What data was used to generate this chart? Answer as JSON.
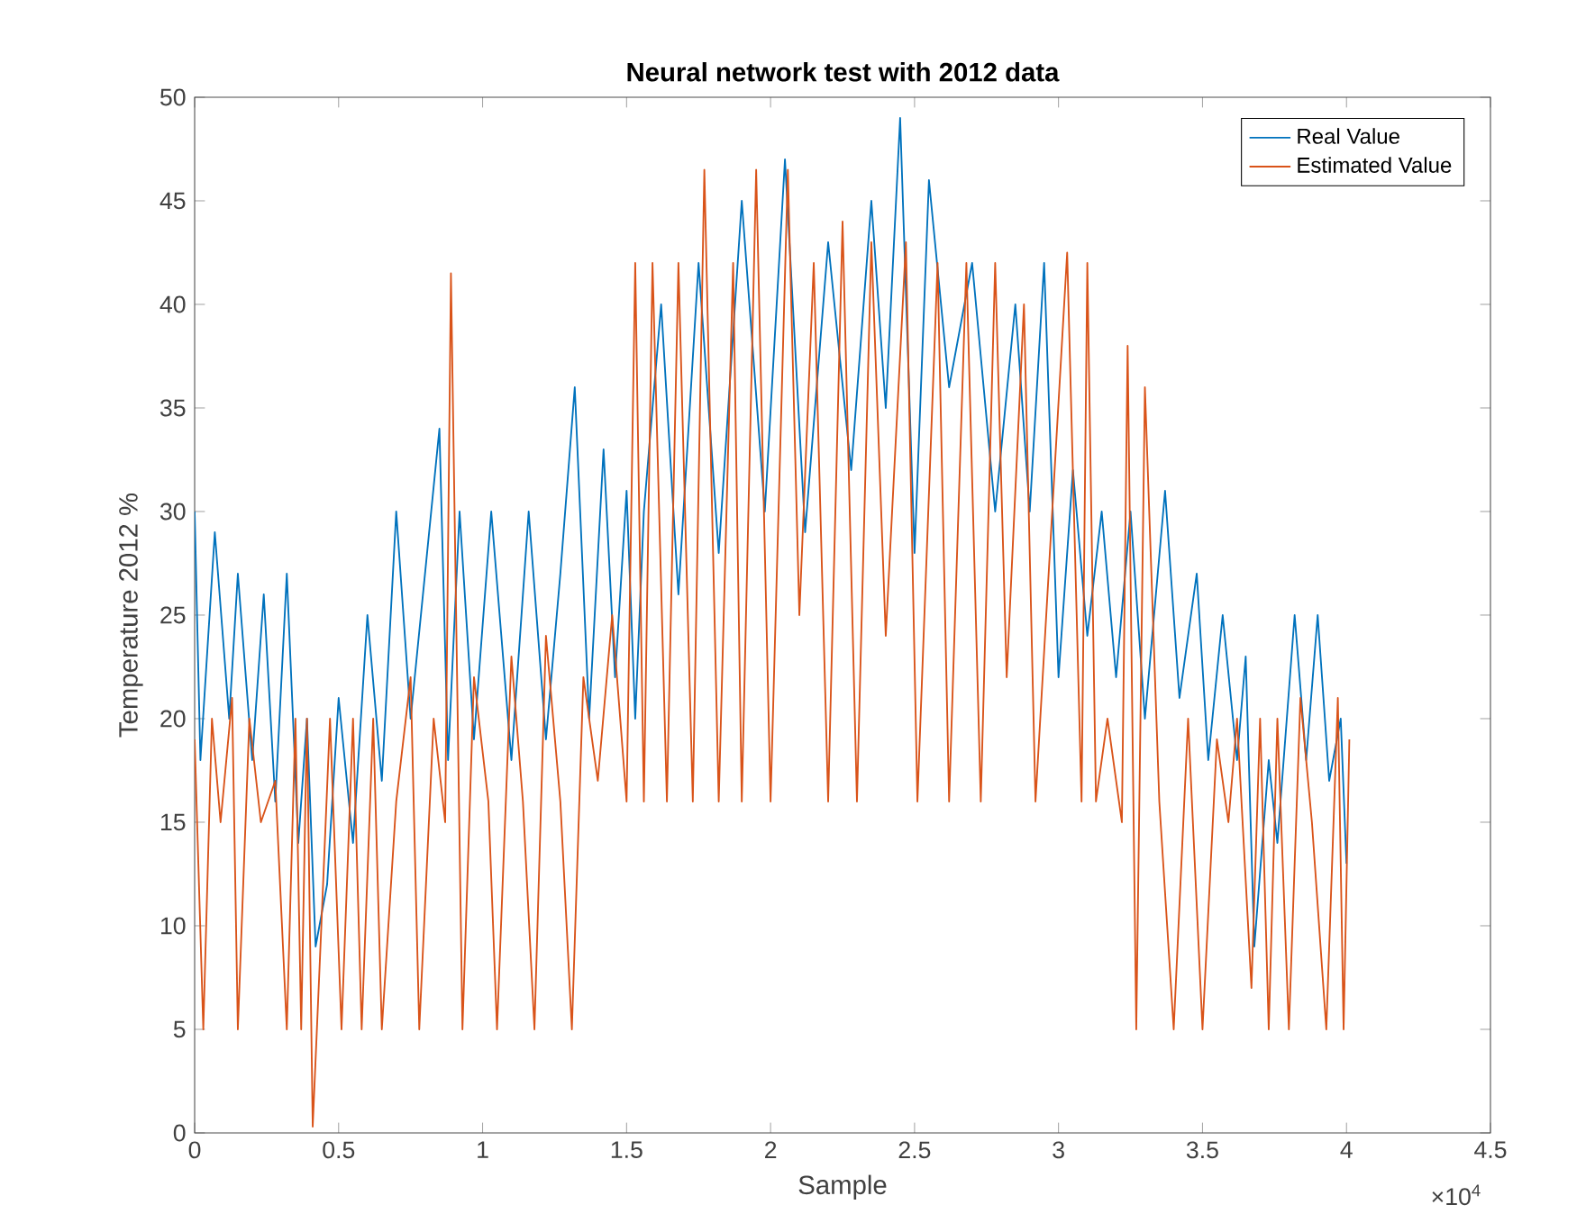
{
  "chart_data": {
    "type": "line",
    "title": "Neural network test with 2012 data",
    "xlabel": "Sample",
    "ylabel": "Temperature 2012 %",
    "xlim": [
      0,
      4.5
    ],
    "ylim": [
      0,
      50
    ],
    "xticks": [
      0,
      0.5,
      1,
      1.5,
      2,
      2.5,
      3,
      3.5,
      4,
      4.5
    ],
    "yticks": [
      0,
      5,
      10,
      15,
      20,
      25,
      30,
      35,
      40,
      45,
      50
    ],
    "annotations": [
      "×10$^{4}$"
    ],
    "legend": "top right",
    "grid": false,
    "marker": "none",
    "line_style": "solid",
    "series": [
      {
        "name": "Real Value",
        "color": "#0072bd",
        "x": [
          0,
          0.02,
          0.07,
          0.12,
          0.15,
          0.2,
          0.24,
          0.28,
          0.32,
          0.36,
          0.39,
          0.42,
          0.46,
          0.5,
          0.55,
          0.6,
          0.65,
          0.7,
          0.75,
          0.85,
          0.88,
          0.92,
          0.97,
          1.03,
          1.1,
          1.16,
          1.22,
          1.27,
          1.32,
          1.37,
          1.42,
          1.46,
          1.5,
          1.53,
          1.56,
          1.62,
          1.68,
          1.75,
          1.82,
          1.9,
          1.98,
          2.05,
          2.12,
          2.2,
          2.28,
          2.35,
          2.4,
          2.45,
          2.5,
          2.55,
          2.62,
          2.7,
          2.78,
          2.85,
          2.9,
          2.95,
          3,
          3.05,
          3.1,
          3.15,
          3.2,
          3.25,
          3.3,
          3.37,
          3.42,
          3.48,
          3.52,
          3.57,
          3.62,
          3.65,
          3.68,
          3.73,
          3.76,
          3.82,
          3.86,
          3.9,
          3.94,
          3.98,
          4
        ],
        "values": [
          30,
          18,
          29,
          20,
          27,
          18,
          26,
          16,
          27,
          14,
          20,
          9,
          12,
          21,
          14,
          25,
          17,
          30,
          20,
          34,
          18,
          30,
          19,
          30,
          18,
          30,
          19,
          27,
          36,
          20,
          33,
          22,
          31,
          20,
          30,
          40,
          26,
          42,
          28,
          45,
          30,
          47,
          29,
          43,
          32,
          45,
          35,
          49,
          28,
          46,
          36,
          42,
          30,
          40,
          30,
          42,
          22,
          32,
          24,
          30,
          22,
          30,
          20,
          31,
          21,
          27,
          18,
          25,
          18,
          23,
          9,
          18,
          14,
          25,
          18,
          25,
          17,
          20,
          13
        ]
      },
      {
        "name": "Estimated Value",
        "color": "#d95319",
        "x": [
          0,
          0.03,
          0.06,
          0.09,
          0.13,
          0.15,
          0.19,
          0.23,
          0.28,
          0.32,
          0.35,
          0.37,
          0.39,
          0.41,
          0.44,
          0.47,
          0.51,
          0.55,
          0.58,
          0.62,
          0.65,
          0.7,
          0.75,
          0.78,
          0.83,
          0.87,
          0.89,
          0.93,
          0.97,
          1.02,
          1.05,
          1.1,
          1.14,
          1.18,
          1.22,
          1.27,
          1.31,
          1.35,
          1.4,
          1.45,
          1.5,
          1.53,
          1.56,
          1.59,
          1.64,
          1.68,
          1.73,
          1.77,
          1.82,
          1.87,
          1.9,
          1.95,
          2,
          2.06,
          2.1,
          2.15,
          2.2,
          2.25,
          2.3,
          2.35,
          2.4,
          2.47,
          2.51,
          2.58,
          2.62,
          2.68,
          2.73,
          2.78,
          2.82,
          2.88,
          2.92,
          3.03,
          3.08,
          3.1,
          3.13,
          3.17,
          3.22,
          3.24,
          3.27,
          3.3,
          3.35,
          3.4,
          3.45,
          3.5,
          3.55,
          3.59,
          3.62,
          3.67,
          3.7,
          3.73,
          3.76,
          3.8,
          3.84,
          3.88,
          3.93,
          3.97,
          3.99,
          4.01
        ],
        "values": [
          19,
          5,
          20,
          15,
          21,
          5,
          20,
          15,
          17,
          5,
          20,
          5,
          20,
          0.3,
          10,
          20,
          5,
          20,
          5,
          20,
          5,
          16,
          22,
          5,
          20,
          15,
          41.5,
          5,
          22,
          16,
          5,
          23,
          16,
          5,
          24,
          16,
          5,
          22,
          17,
          25,
          16,
          42,
          16,
          42,
          16,
          42,
          16,
          46.5,
          16,
          42,
          16,
          46.5,
          16,
          46.5,
          25,
          42,
          16,
          44,
          16,
          43,
          24,
          43,
          16,
          42,
          16,
          42,
          16,
          42,
          22,
          40,
          16,
          42.5,
          16,
          42,
          16,
          20,
          15,
          38,
          5,
          36,
          16,
          5,
          20,
          5,
          19,
          15,
          20,
          7,
          20,
          5,
          20,
          5,
          21,
          15,
          5,
          21,
          5,
          19
        ]
      }
    ]
  }
}
